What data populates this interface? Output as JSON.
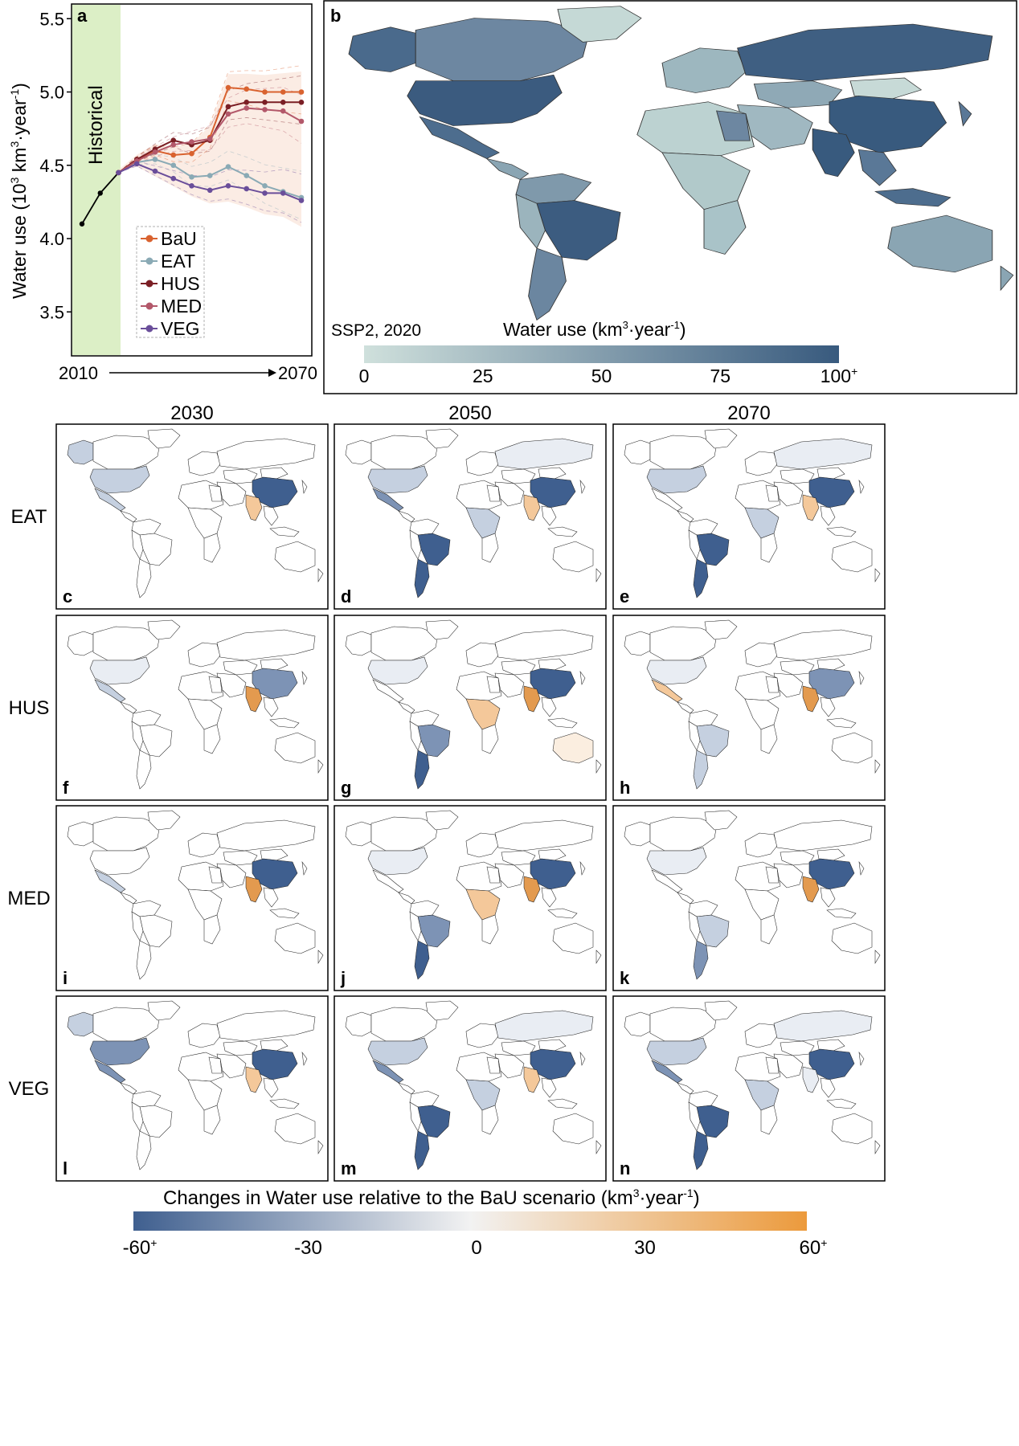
{
  "panel_a": {
    "letter": "a",
    "historical_label": "Historical",
    "ylabel_main": "Water use (10",
    "ylabel_sup1": "3",
    "ylabel_mid": " km",
    "ylabel_sup2": "3",
    "ylabel_end": "·year",
    "ylabel_sup3": "-1",
    "ylabel_close": ")",
    "x_start_label": "2010",
    "x_end_label": "2070",
    "yticks": [
      "3.5",
      "4.0",
      "4.5",
      "5.0",
      "5.5"
    ]
  },
  "panel_b": {
    "letter": "b",
    "scenario_label": "SSP2, 2020",
    "colorbar_title": "Water use (km",
    "colorbar_sup1": "3",
    "colorbar_mid": "·year",
    "colorbar_sup2": "-1",
    "colorbar_close": ")",
    "ticks": [
      "0",
      "25",
      "50",
      "75",
      "100"
    ],
    "tick_plus": "+",
    "colors": [
      "#cfe0dc",
      "#385a7e"
    ]
  },
  "grid": {
    "columns": [
      "2030",
      "2050",
      "2070"
    ],
    "rows": [
      "EAT",
      "HUS",
      "MED",
      "VEG"
    ],
    "letters": [
      "c",
      "d",
      "e",
      "f",
      "g",
      "h",
      "i",
      "j",
      "k",
      "l",
      "m",
      "n"
    ]
  },
  "bottom_colorbar": {
    "title": "Changes in Water use relative to the BaU scenario (km",
    "title_sup1": "3",
    "title_mid": "·year",
    "title_sup2": "-1",
    "title_close": ")",
    "ticks": [
      "-60",
      "-30",
      "0",
      "30",
      "60"
    ],
    "tick_plus": "+",
    "colors": [
      "#3f5f8f",
      "#f2f2f2",
      "#ec9a3c"
    ]
  },
  "chart_data": [
    {
      "type": "line",
      "panel": "a",
      "ylabel": "Water use (10^3 km^3·year^-1)",
      "ylim": [
        3.2,
        5.6
      ],
      "xlim": [
        2010,
        2070
      ],
      "historical_span": [
        2010,
        2020
      ],
      "historical": {
        "x": [
          2010,
          2015,
          2020
        ],
        "values": [
          4.1,
          4.31,
          4.45
        ]
      },
      "x": [
        2020,
        2025,
        2030,
        2035,
        2040,
        2045,
        2050,
        2055,
        2060,
        2065,
        2070
      ],
      "series": [
        {
          "name": "BaU",
          "color": "#d9622f",
          "values": [
            4.45,
            4.54,
            4.6,
            4.57,
            4.58,
            4.69,
            5.03,
            5.02,
            5.0,
            5.0,
            5.0
          ]
        },
        {
          "name": "EAT",
          "color": "#8aaab5",
          "values": [
            4.45,
            4.52,
            4.54,
            4.5,
            4.42,
            4.43,
            4.49,
            4.43,
            4.36,
            4.32,
            4.28
          ]
        },
        {
          "name": "HUS",
          "color": "#7b1f25",
          "values": [
            4.45,
            4.54,
            4.61,
            4.67,
            4.64,
            4.67,
            4.9,
            4.93,
            4.93,
            4.93,
            4.93
          ]
        },
        {
          "name": "MED",
          "color": "#b3586a",
          "values": [
            4.45,
            4.53,
            4.59,
            4.64,
            4.66,
            4.68,
            4.85,
            4.89,
            4.88,
            4.87,
            4.8
          ]
        },
        {
          "name": "VEG",
          "color": "#6a4e9a",
          "values": [
            4.45,
            4.51,
            4.46,
            4.41,
            4.36,
            4.33,
            4.36,
            4.34,
            4.31,
            4.31,
            4.26
          ]
        }
      ],
      "legend": "left-bottom"
    },
    {
      "type": "heatmap",
      "panel": "b",
      "scale": [
        0,
        100
      ],
      "regions": [
        {
          "name": "United States",
          "value": 96
        },
        {
          "name": "Canada",
          "value": 62
        },
        {
          "name": "Greenland",
          "value": 12
        },
        {
          "name": "Alaska",
          "value": 80
        },
        {
          "name": "Mexico",
          "value": 78
        },
        {
          "name": "Brazil",
          "value": 95
        },
        {
          "name": "Argentina",
          "value": 65
        },
        {
          "name": "Russia",
          "value": 90
        },
        {
          "name": "China",
          "value": 100
        },
        {
          "name": "India",
          "value": 100
        },
        {
          "name": "Kazakhstan",
          "value": 45
        },
        {
          "name": "Mongolia",
          "value": 15
        },
        {
          "name": "Egypt",
          "value": 55
        },
        {
          "name": "Australia",
          "value": 48
        },
        {
          "name": "Indonesia",
          "value": 85
        },
        {
          "name": "Southeast Asia",
          "value": 80
        }
      ]
    }
  ]
}
